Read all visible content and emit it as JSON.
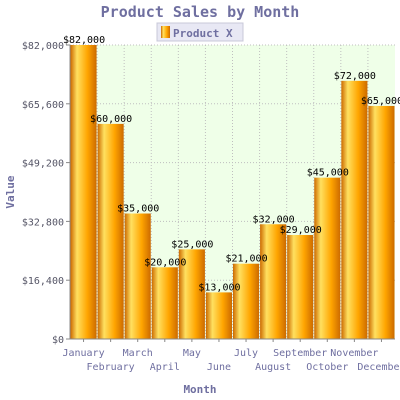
{
  "chart_data": {
    "type": "bar",
    "title": "Product Sales by Month",
    "xlabel": "Month",
    "ylabel": "Value",
    "categories": [
      "January",
      "February",
      "March",
      "April",
      "May",
      "June",
      "July",
      "August",
      "September",
      "October",
      "November",
      "December"
    ],
    "series": [
      {
        "name": "Product X",
        "values": [
          82000,
          60000,
          35000,
          20000,
          25000,
          13000,
          21000,
          32000,
          29000,
          45000,
          72000,
          65000
        ]
      }
    ],
    "value_labels": [
      "$82,000",
      "$60,000",
      "$35,000",
      "$20,000",
      "$25,000",
      "$13,000",
      "$21,000",
      "$32,000",
      "$29,000",
      "$45,000",
      "$72,000",
      "$65,000"
    ],
    "yticks": [
      0,
      16400,
      32800,
      49200,
      65600,
      82000
    ],
    "ytick_labels": [
      "$0",
      "$16,400",
      "$32,800",
      "$49,200",
      "$65,600",
      "$82,000"
    ],
    "ylim": [
      0,
      82000
    ],
    "grid": true,
    "legend_position": "top-center"
  },
  "colors": {
    "plot_background": "#efffe8",
    "grid": "#bfbfbf",
    "bar_light": "#ffe060",
    "bar_mid": "#ffa500",
    "bar_dark": "#cc6a00",
    "axis": "#888888",
    "legend_background": "#e8e8f4"
  }
}
